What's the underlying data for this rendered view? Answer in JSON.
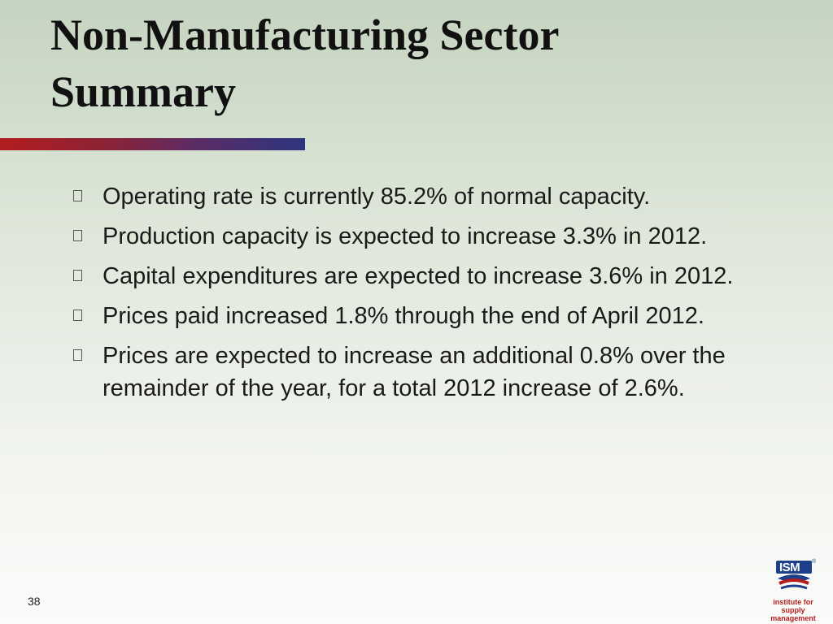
{
  "slide": {
    "title_line1": "Non-Manufacturing Sector",
    "title_line2": "Summary",
    "bullets": [
      "Operating rate is currently 85.2% of normal capacity.",
      "Production capacity is expected to increase 3.3% in 2012.",
      "Capital expenditures are expected to increase 3.6% in 2012.",
      "Prices paid increased 1.8% through the end of April 2012.",
      "Prices are expected to increase an additional 0.8% over the remainder of the year, for a total 2012 increase of 2.6%."
    ],
    "page_number": "38"
  },
  "logo": {
    "wordmark": "ISM",
    "registered_mark": "®",
    "caption_line1": "institute for",
    "caption_line2": "supply management"
  },
  "colors": {
    "accent_red": "#b31d1d",
    "accent_blue": "#2d3580",
    "logo_blue": "#1e3f8a"
  }
}
